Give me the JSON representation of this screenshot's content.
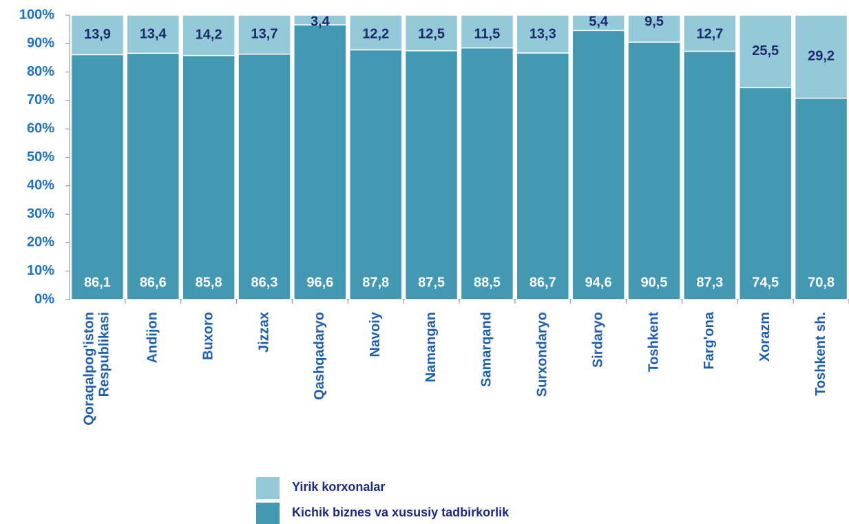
{
  "chart_data": {
    "type": "stacked_bar",
    "categories": [
      "Qoraqalpog'iston\nRespublikasi",
      "Andijon",
      "Buxoro",
      "Jizzax",
      "Qashqadaryo",
      "Navoiy",
      "Namangan",
      "Samarqand",
      "Surxondaryo",
      "Sirdaryo",
      "Toshkent",
      "Farg'ona",
      "Xorazm",
      "Toshkent sh."
    ],
    "series": [
      {
        "name": "Kichik biznes va xususiy tadbirkorlik",
        "color": "#4399b1",
        "values": [
          86.1,
          86.6,
          85.8,
          86.3,
          96.6,
          87.8,
          87.5,
          88.5,
          86.7,
          94.6,
          90.5,
          87.3,
          74.5,
          70.8
        ],
        "value_labels": [
          "86,1",
          "86,6",
          "85,8",
          "86,3",
          "96,6",
          "87,8",
          "87,5",
          "88,5",
          "86,7",
          "94,6",
          "90,5",
          "87,3",
          "74,5",
          "70,8"
        ]
      },
      {
        "name": "Yirik korxonalar",
        "color": "#93c9d8",
        "values": [
          13.9,
          13.4,
          14.2,
          13.7,
          3.4,
          12.2,
          12.5,
          11.5,
          13.3,
          5.4,
          9.5,
          12.7,
          25.5,
          29.2
        ],
        "value_labels": [
          "13,9",
          "13,4",
          "14,2",
          "13,7",
          "3,4",
          "12,2",
          "12,5",
          "11,5",
          "13,3",
          "5,4",
          "9,5",
          "12,7",
          "25,5",
          "29,2"
        ]
      }
    ],
    "ylim": [
      0,
      100
    ],
    "yticks": [
      {
        "value": 0,
        "label": "0%"
      },
      {
        "value": 10,
        "label": "10%"
      },
      {
        "value": 20,
        "label": "20%"
      },
      {
        "value": 30,
        "label": "30%"
      },
      {
        "value": 40,
        "label": "40%"
      },
      {
        "value": 50,
        "label": "50%"
      },
      {
        "value": 60,
        "label": "60%"
      },
      {
        "value": 70,
        "label": "70%"
      },
      {
        "value": 80,
        "label": "80%"
      },
      {
        "value": 90,
        "label": "90%"
      },
      {
        "value": 100,
        "label": "100%"
      }
    ]
  }
}
